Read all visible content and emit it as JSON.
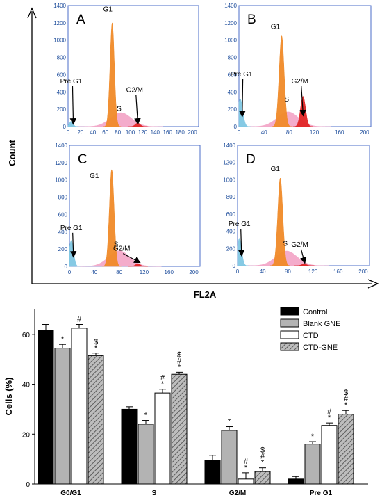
{
  "figure": {
    "count_label": "Count",
    "fl2a_label": "FL2A"
  },
  "chart_data": [
    {
      "type": "area",
      "panel": "A",
      "x_ticks": [
        "0",
        "20",
        "40",
        "60",
        "80",
        "100",
        "120",
        "140",
        "160",
        "180",
        "200"
      ],
      "y_ticks": [
        "0",
        "200",
        "400",
        "600",
        "800",
        "1000",
        "1200",
        "1400"
      ],
      "xlim": [
        0,
        210
      ],
      "ylim": [
        0,
        1400
      ],
      "phases": [
        {
          "name": "Pre G1",
          "center": 5,
          "sigma": 3,
          "height": 60,
          "color": "#7fc7e3"
        },
        {
          "name": "G1",
          "center": 71,
          "sigma": 3.5,
          "height": 1200,
          "color": "#f08a28"
        },
        {
          "name": "S",
          "center": 85,
          "sigma": 17,
          "height": 160,
          "color": "#f3a8c8"
        },
        {
          "name": "G2/M",
          "center": 112,
          "sigma": 4,
          "height": 40,
          "color": "#e02525"
        }
      ],
      "labels": [
        {
          "text": "G1",
          "x": 64,
          "y": 1330
        },
        {
          "text": "S",
          "x": 82,
          "y": 180
        },
        {
          "text": "G2/M",
          "x": 107,
          "y": 400
        },
        {
          "text": "Pre G1",
          "x": 5,
          "y": 500
        }
      ]
    },
    {
      "type": "area",
      "panel": "B",
      "x_ticks": [
        "0",
        "40",
        "80",
        "120",
        "160",
        "200"
      ],
      "y_ticks": [
        "0",
        "200",
        "400",
        "600",
        "800",
        "1000",
        "1200",
        "1400"
      ],
      "xlim": [
        0,
        210
      ],
      "ylim": [
        0,
        1400
      ],
      "phases": [
        {
          "name": "Pre G1",
          "center": 2,
          "sigma": 4,
          "height": 320,
          "color": "#7fc7e3"
        },
        {
          "name": "G1",
          "center": 68,
          "sigma": 4,
          "height": 1050,
          "color": "#f08a28"
        },
        {
          "name": "S",
          "center": 78,
          "sigma": 17,
          "height": 170,
          "color": "#f3a8c8"
        },
        {
          "name": "G2/M",
          "center": 102,
          "sigma": 4,
          "height": 350,
          "color": "#e02525"
        }
      ],
      "labels": [
        {
          "text": "G1",
          "x": 58,
          "y": 1130
        },
        {
          "text": "S",
          "x": 76,
          "y": 290
        },
        {
          "text": "G2/M",
          "x": 97,
          "y": 500
        },
        {
          "text": "Pre G1",
          "x": 4,
          "y": 580
        }
      ]
    },
    {
      "type": "area",
      "panel": "C",
      "x_ticks": [
        "0",
        "40",
        "80",
        "120",
        "160",
        "200"
      ],
      "y_ticks": [
        "0",
        "200",
        "400",
        "600",
        "800",
        "1000",
        "1200",
        "1400"
      ],
      "xlim": [
        0,
        210
      ],
      "ylim": [
        0,
        1400
      ],
      "phases": [
        {
          "name": "Pre G1",
          "center": 3,
          "sigma": 3.5,
          "height": 300,
          "color": "#7fc7e3"
        },
        {
          "name": "G1",
          "center": 68,
          "sigma": 3.8,
          "height": 1120,
          "color": "#f08a28"
        },
        {
          "name": "S",
          "center": 80,
          "sigma": 17,
          "height": 180,
          "color": "#f3a8c8"
        },
        {
          "name": "G2/M",
          "center": 110,
          "sigma": 4,
          "height": 30,
          "color": "#e02525"
        }
      ],
      "labels": [
        {
          "text": "G1",
          "x": 40,
          "y": 1020
        },
        {
          "text": "S",
          "x": 75,
          "y": 230
        },
        {
          "text": "G2/M",
          "x": 84,
          "y": 180
        },
        {
          "text": "Pre G1",
          "x": 3,
          "y": 420
        }
      ]
    },
    {
      "type": "area",
      "panel": "D",
      "x_ticks": [
        "0",
        "40",
        "80",
        "120",
        "160",
        "200"
      ],
      "y_ticks": [
        "0",
        "200",
        "400",
        "600",
        "800",
        "1000",
        "1200",
        "1400"
      ],
      "xlim": [
        0,
        210
      ],
      "ylim": [
        0,
        1400
      ],
      "phases": [
        {
          "name": "Pre G1",
          "center": 3,
          "sigma": 3.5,
          "height": 320,
          "color": "#7fc7e3"
        },
        {
          "name": "G1",
          "center": 68,
          "sigma": 4,
          "height": 1020,
          "color": "#f08a28"
        },
        {
          "name": "S",
          "center": 78,
          "sigma": 17,
          "height": 170,
          "color": "#f3a8c8"
        },
        {
          "name": "G2/M",
          "center": 106,
          "sigma": 4,
          "height": 20,
          "color": "#e02525"
        }
      ],
      "labels": [
        {
          "text": "G1",
          "x": 60,
          "y": 1100
        },
        {
          "text": "S",
          "x": 76,
          "y": 230
        },
        {
          "text": "G2/M",
          "x": 99,
          "y": 220
        },
        {
          "text": "Pre G1",
          "x": 3,
          "y": 460
        }
      ]
    },
    {
      "type": "bar",
      "categories": [
        "G0/G1",
        "S",
        "G2/M",
        "Pre G1"
      ],
      "ylabel": "Cells (%)",
      "ylim": [
        0,
        70
      ],
      "y_ticks": [
        "0",
        "20",
        "40",
        "60"
      ],
      "series": [
        {
          "name": "Control",
          "color": "#000000",
          "pattern": "solid",
          "values": [
            61.5,
            30,
            9.5,
            2
          ],
          "errors": [
            2.5,
            1,
            2,
            1
          ],
          "marks": [
            "",
            "",
            "",
            ""
          ]
        },
        {
          "name": "Blank GNE",
          "color": "#b3b3b3",
          "pattern": "solid",
          "values": [
            54.5,
            24,
            21.5,
            16
          ],
          "errors": [
            1.5,
            1.5,
            1.5,
            1
          ],
          "marks": [
            "*",
            "*",
            "*",
            "*"
          ]
        },
        {
          "name": "CTD",
          "color": "#ffffff",
          "pattern": "solid",
          "values": [
            62.5,
            36.5,
            2,
            23.5
          ],
          "errors": [
            1.5,
            1.5,
            2.5,
            1
          ],
          "marks": [
            "#",
            "#\n*",
            "#\n*",
            "#\n*"
          ]
        },
        {
          "name": "CTD-GNE",
          "color": "#8a8a8a",
          "pattern": "hatched",
          "values": [
            51.5,
            44,
            5,
            28
          ],
          "errors": [
            1,
            0.8,
            1.5,
            1.5
          ],
          "marks": [
            "$\n*",
            "$\n#\n*",
            "$\n#\n*",
            "$\n#\n*"
          ]
        }
      ]
    }
  ]
}
